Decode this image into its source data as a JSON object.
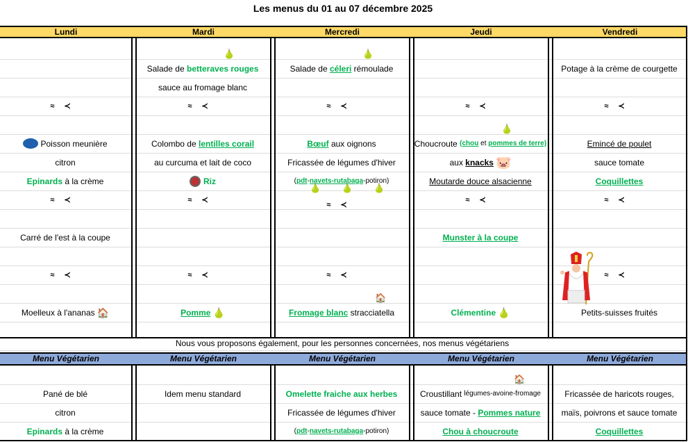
{
  "title": "Les menus du 01 au 07 décembre 2025",
  "days": [
    "Lundi",
    "Mardi",
    "Mercredi",
    "Jeudi",
    "Vendredi"
  ],
  "veg_header": "Menu Végétarien",
  "note": "Nous vous proposons également, pour les personnes concernées, nos menus végétariens",
  "colors": {
    "header": "#ffd966",
    "veg_header": "#8eaadb",
    "green": "#00b050"
  },
  "fish_glyph": "≈≺",
  "main": [
    [
      {
        "k": 2,
        "fish": true
      },
      {
        "k": 4,
        "icon": "msc-fish-label-icon",
        "seg": [
          [
            "Poisson meunière",
            ""
          ]
        ]
      },
      {
        "k": 5,
        "seg": [
          [
            "citron",
            ""
          ]
        ]
      },
      {
        "k": 6,
        "seg": [
          [
            "Epinards",
            "g"
          ],
          [
            " à la crème",
            ""
          ]
        ]
      },
      {
        "k": 7,
        "fish": true
      },
      {
        "k": 9,
        "seg": [
          [
            "Carré de l'est à la coupe",
            ""
          ]
        ]
      },
      {
        "k": 11,
        "fish": true
      },
      {
        "k": 13,
        "seg": [
          [
            "Moelleux à l'ananas",
            ""
          ]
        ],
        "after": "house-icon"
      }
    ],
    [
      {
        "k": 0,
        "above": "fruit-icon",
        "seg": [
          [
            "Salade de ",
            ""
          ],
          [
            "betteraves rouges",
            "g"
          ]
        ]
      },
      {
        "k": 1,
        "seg": [
          [
            "sauce au fromage blanc",
            ""
          ]
        ]
      },
      {
        "k": 2,
        "fish": true
      },
      {
        "k": 4,
        "seg": [
          [
            "Colombo de ",
            ""
          ],
          [
            "lentilles corail",
            "gu"
          ]
        ]
      },
      {
        "k": 5,
        "seg": [
          [
            "au curcuma et lait de coco",
            ""
          ]
        ]
      },
      {
        "k": 6,
        "icon": "label-logo-icon",
        "seg": [
          [
            "Riz",
            "g"
          ]
        ]
      },
      {
        "k": 7,
        "fish": true
      },
      {
        "k": 11,
        "fish": true
      },
      {
        "k": 13,
        "seg": [
          [
            "Pomme",
            "gu"
          ]
        ],
        "after": "fruit-icon"
      }
    ],
    [
      {
        "k": 0,
        "above": "fruit-icon",
        "seg": [
          [
            "Salade de ",
            ""
          ],
          [
            "céleri",
            "gu"
          ],
          [
            " rémoulade",
            ""
          ]
        ]
      },
      {
        "k": 2,
        "fish": true
      },
      {
        "k": 4,
        "seg": [
          [
            "Bœuf",
            "gu"
          ],
          [
            " aux oignons",
            ""
          ]
        ]
      },
      {
        "k": 5,
        "seg": [
          [
            "Fricassée de légumes d'hiver",
            ""
          ]
        ]
      },
      {
        "k": 6,
        "seg": [
          [
            "(",
            "sm"
          ],
          [
            "pdt",
            "gu sm"
          ],
          [
            "-",
            "sm"
          ],
          [
            "navets-rutabaga",
            "gu sm"
          ],
          [
            "-potiron)",
            "sm"
          ]
        ]
      },
      {
        "k": 7,
        "fish": true,
        "fruits": 3
      },
      {
        "k": 11,
        "fish": true
      },
      {
        "k": 13,
        "above": "house-icon",
        "seg": [
          [
            "Fromage blanc",
            "gu"
          ],
          [
            " stracciatella",
            ""
          ]
        ]
      }
    ],
    [
      {
        "k": 2,
        "fish": true
      },
      {
        "k": 4,
        "above": "fruit-icon",
        "seg": [
          [
            "Choucroute ",
            ""
          ],
          [
            "(chou",
            "gu sm"
          ],
          [
            " et ",
            "sm"
          ],
          [
            "pommes de terre)",
            "gu sm"
          ]
        ]
      },
      {
        "k": 5,
        "seg": [
          [
            "aux ",
            ""
          ],
          [
            "knacks",
            "bu"
          ]
        ],
        "after": "pig-icon"
      },
      {
        "k": 6,
        "seg": [
          [
            "Moutarde douce alsacienne",
            "u"
          ]
        ]
      },
      {
        "k": 7,
        "fish": true
      },
      {
        "k": 9,
        "seg": [
          [
            "Munster à la coupe",
            "gu"
          ]
        ]
      },
      {
        "k": 13,
        "seg": [
          [
            "Clémentine",
            "g"
          ]
        ],
        "after": "fruit-icon"
      }
    ],
    [
      {
        "k": 0,
        "seg": [
          [
            "Potage à la crème de courgette",
            ""
          ]
        ]
      },
      {
        "k": 2,
        "fish": true
      },
      {
        "k": 4,
        "seg": [
          [
            "Emincé de poulet",
            "u"
          ]
        ]
      },
      {
        "k": 5,
        "seg": [
          [
            "sauce tomate",
            ""
          ]
        ]
      },
      {
        "k": 6,
        "seg": [
          [
            "Coquillettes",
            "gu"
          ]
        ]
      },
      {
        "k": 7,
        "fish": true
      },
      {
        "k": 11,
        "fish": true
      },
      {
        "k": 13,
        "seg": [
          [
            "Petits-suisses fruités",
            ""
          ]
        ]
      }
    ]
  ],
  "veg": [
    [
      {
        "k": 1,
        "seg": [
          [
            "Pané de blé",
            ""
          ]
        ]
      },
      {
        "k": 2,
        "seg": [
          [
            "citron",
            ""
          ]
        ]
      },
      {
        "k": 3,
        "seg": [
          [
            "Epinards",
            "g"
          ],
          [
            " à la crème",
            ""
          ]
        ]
      }
    ],
    [
      {
        "k": 1,
        "seg": [
          [
            "Idem menu standard",
            ""
          ]
        ]
      }
    ],
    [
      {
        "k": 1,
        "seg": [
          [
            "Omelette fraiche aux herbes",
            "g"
          ]
        ]
      },
      {
        "k": 2,
        "seg": [
          [
            "Fricassée de légumes d'hiver",
            ""
          ]
        ]
      },
      {
        "k": 3,
        "seg": [
          [
            "(",
            "sm"
          ],
          [
            "pdt",
            "gu sm"
          ],
          [
            "-",
            "sm"
          ],
          [
            "navets-rutabaga",
            "gu sm"
          ],
          [
            "-potiron)",
            "sm"
          ]
        ]
      }
    ],
    [
      {
        "k": 1,
        "above": "house-icon",
        "seg": [
          [
            "Croustillant ",
            ""
          ],
          [
            "légumes-avoine-fromage",
            "sm"
          ]
        ]
      },
      {
        "k": 2,
        "seg": [
          [
            "sauce tomate - ",
            ""
          ],
          [
            "Pommes nature",
            "gu"
          ]
        ]
      },
      {
        "k": 3,
        "seg": [
          [
            "Chou à choucroute",
            "gu"
          ]
        ]
      }
    ],
    [
      {
        "k": 1,
        "seg": [
          [
            "Fricassée de haricots rouges,",
            ""
          ]
        ]
      },
      {
        "k": 2,
        "seg": [
          [
            "maïs, poivrons et sauce tomate",
            ""
          ]
        ]
      },
      {
        "k": 3,
        "seg": [
          [
            "Coquillettes",
            "gu"
          ]
        ]
      }
    ]
  ]
}
